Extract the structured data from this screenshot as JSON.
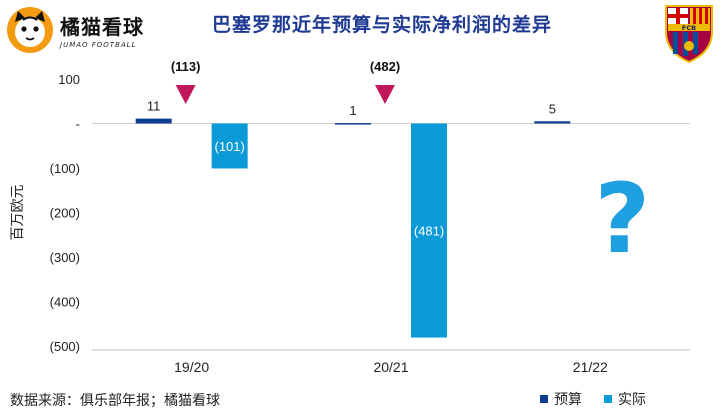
{
  "brand": {
    "name": "橘猫看球",
    "subtitle": "JUMAO FOOTBALL"
  },
  "title": "巴塞罗那近年预算与实际净利润的差异",
  "crest_letters": "FCB",
  "source": "数据来源：俱乐部年报；橘猫看球",
  "colors": {
    "budget": "#0b3d91",
    "actual": "#0a9ad8",
    "marker": "#c2185b",
    "question": "#1d9fe0"
  },
  "chart_data": {
    "type": "bar",
    "categories": [
      "19/20",
      "20/21",
      "21/22"
    ],
    "series": [
      {
        "name": "预算",
        "values": [
          11,
          1,
          5
        ],
        "labels": [
          "11",
          "1",
          "5"
        ]
      },
      {
        "name": "实际",
        "values": [
          -101,
          -481,
          null
        ],
        "labels": [
          "(101)",
          "(481)",
          ""
        ]
      }
    ],
    "differences": [
      {
        "category": "19/20",
        "label": "(113)"
      },
      {
        "category": "20/21",
        "label": "(482)"
      }
    ],
    "ylabel": "百万欧元",
    "ylim": [
      -500,
      100
    ],
    "yticks": [
      100,
      0,
      -100,
      -200,
      -300,
      -400,
      -500
    ],
    "ytick_labels": [
      "100",
      "-",
      "(100)",
      "(200)",
      "(300)",
      "(400)",
      "(500)"
    ],
    "pending_mark": "?",
    "legend_position": "bottom-right"
  }
}
